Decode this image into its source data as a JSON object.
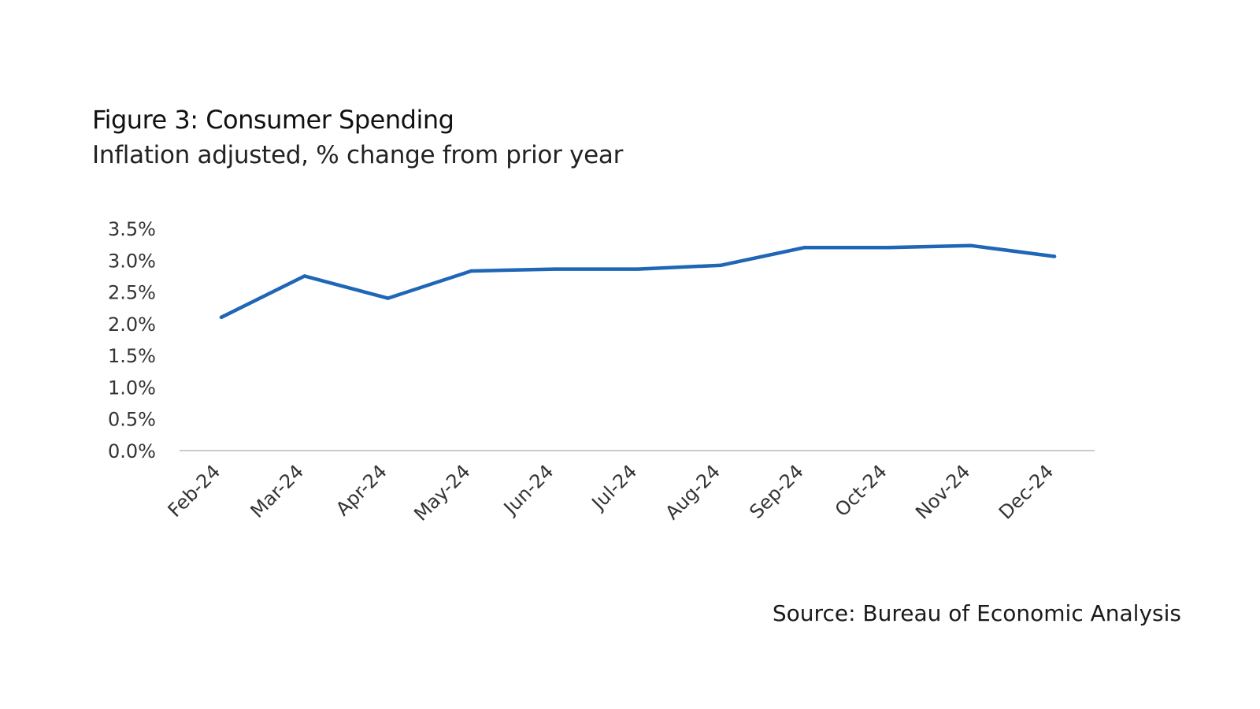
{
  "title": "Figure 3: Consumer Spending",
  "subtitle": "Inflation adjusted, % change from prior year",
  "source": "Source: Bureau of Economic Analysis",
  "colors": {
    "series": "#1f66b7",
    "axis": "#cccccc",
    "text": "#333333"
  },
  "chart_data": {
    "type": "line",
    "title": "Figure 3: Consumer Spending",
    "subtitle": "Inflation adjusted, % change from prior year",
    "xlabel": "",
    "ylabel": "",
    "categories": [
      "Feb-24",
      "Mar-24",
      "Apr-24",
      "May-24",
      "Jun-24",
      "Jul-24",
      "Aug-24",
      "Sep-24",
      "Oct-24",
      "Nov-24",
      "Dec-24"
    ],
    "series": [
      {
        "values": [
          2.1,
          2.75,
          2.4,
          2.83,
          2.86,
          2.86,
          2.92,
          3.2,
          3.2,
          3.23,
          3.06
        ]
      }
    ],
    "ylim": [
      0,
      3.5
    ],
    "yticks": [
      "0.0%",
      "0.5%",
      "1.0%",
      "1.5%",
      "2.0%",
      "2.5%",
      "3.0%",
      "3.5%"
    ],
    "grid": false,
    "legend": "none"
  }
}
